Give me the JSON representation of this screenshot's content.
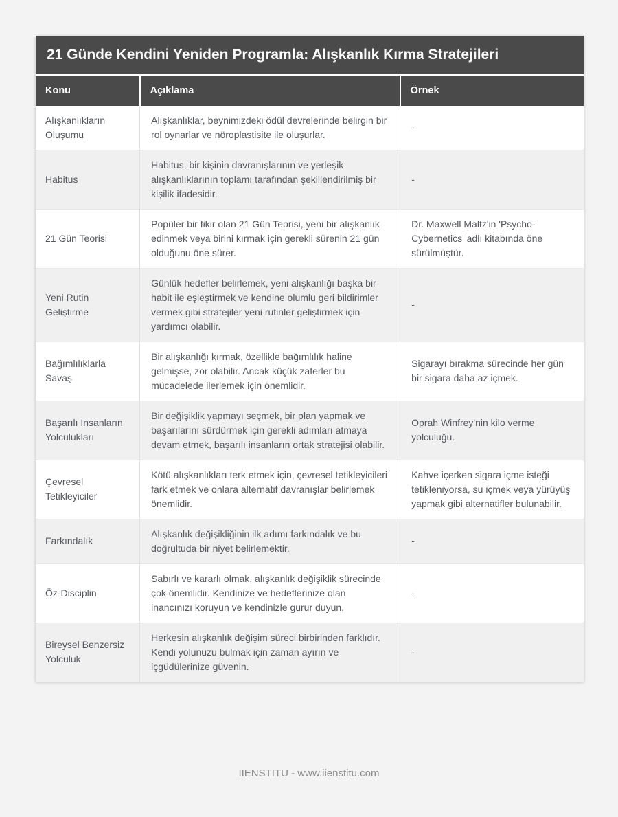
{
  "page": {
    "title": "21 Günde Kendini Yeniden Programla: Alışkanlık Kırma Stratejileri",
    "footer": "IIENSTITU - www.iienstitu.com"
  },
  "colors": {
    "header_background": "#4A4A4A",
    "header_text": "#FDFDFD",
    "body_text": "#55595E",
    "row_stripe": "#F0F0F1",
    "page_background": "#F3F3F4",
    "cell_border": "#E0E0E0",
    "footer_text": "#8C8C8C"
  },
  "table": {
    "columns": [
      "Konu",
      "Açıklama",
      "Örnek"
    ],
    "rows": [
      {
        "konu": "Alışkanlıkların Oluşumu",
        "aciklama": "Alışkanlıklar, beynimizdeki ödül devrelerinde belirgin bir rol oynarlar ve nöroplastisite ile oluşurlar.",
        "ornek": "-"
      },
      {
        "konu": "Habitus",
        "aciklama": "Habitus, bir kişinin davranışlarının ve yerleşik alışkanlıklarının toplamı tarafından şekillendirilmiş bir kişilik ifadesidir.",
        "ornek": "-"
      },
      {
        "konu": "21 Gün Teorisi",
        "aciklama": "Popüler bir fikir olan 21 Gün Teorisi, yeni bir alışkanlık edinmek veya birini kırmak için gerekli sürenin 21 gün olduğunu öne sürer.",
        "ornek": "Dr. Maxwell Maltz'in 'Psycho-Cybernetics' adlı kitabında öne sürülmüştür."
      },
      {
        "konu": "Yeni Rutin Geliştirme",
        "aciklama": "Günlük hedefler belirlemek, yeni alışkanlığı başka bir habit ile eşleştirmek ve kendine olumlu geri bildirimler vermek gibi stratejiler yeni rutinler geliştirmek için yardımcı olabilir.",
        "ornek": "-"
      },
      {
        "konu": "Bağımlılıklarla Savaş",
        "aciklama": "Bir alışkanlığı kırmak, özellikle bağımlılık haline gelmişse, zor olabilir. Ancak küçük zaferler bu mücadelede ilerlemek için önemlidir.",
        "ornek": "Sigarayı bırakma sürecinde her gün bir sigara daha az içmek."
      },
      {
        "konu": "Başarılı İnsanların Yolculukları",
        "aciklama": "Bir değişiklik yapmayı seçmek, bir plan yapmak ve başarılarını sürdürmek için gerekli adımları atmaya devam etmek, başarılı insanların ortak stratejisi olabilir.",
        "ornek": "Oprah Winfrey'nin kilo verme yolculuğu."
      },
      {
        "konu": "Çevresel Tetikleyiciler",
        "aciklama": "Kötü alışkanlıkları terk etmek için, çevresel tetikleyicileri fark etmek ve onlara alternatif davranışlar belirlemek önemlidir.",
        "ornek": "Kahve içerken sigara içme isteği tetikleniyorsa, su içmek veya yürüyüş yapmak gibi alternatifler bulunabilir."
      },
      {
        "konu": "Farkındalık",
        "aciklama": "Alışkanlık değişikliğinin ilk adımı farkındalık ve bu doğrultuda bir niyet belirlemektir.",
        "ornek": "-"
      },
      {
        "konu": "Öz-Disciplin",
        "aciklama": "Sabırlı ve kararlı olmak, alışkanlık değişiklik sürecinde çok önemlidir. Kendinize ve hedeflerinize olan inancınızı koruyun ve kendinizle gurur duyun.",
        "ornek": "-"
      },
      {
        "konu": "Bireysel Benzersiz Yolculuk",
        "aciklama": "Herkesin alışkanlık değişim süreci birbirinden farklıdır. Kendi yolunuzu bulmak için zaman ayırın ve içgüdülerinize güvenin.",
        "ornek": "-"
      }
    ]
  }
}
